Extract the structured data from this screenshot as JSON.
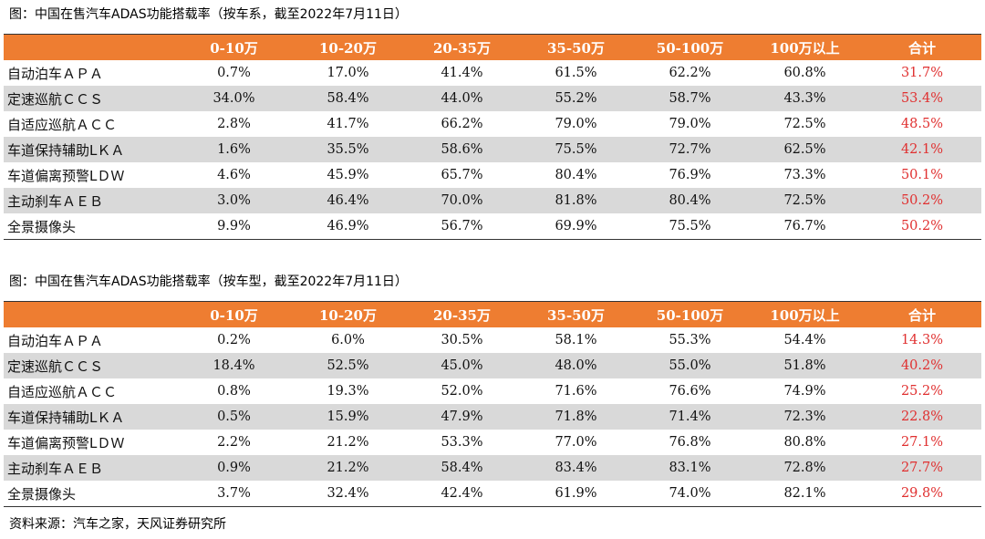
{
  "table1": {
    "caption": "图：中国在售汽车ADAS功能搭载率（按车系，截至2022年7月11日）",
    "headers": [
      "",
      "0-10万",
      "10-20万",
      "20-35万",
      "35-50万",
      "50-100万",
      "100万以上",
      "合计"
    ],
    "rows": [
      [
        "自动泊车ＡＰＡ",
        "0.7%",
        "17.0%",
        "41.4%",
        "61.5%",
        "62.2%",
        "60.8%",
        "31.7%"
      ],
      [
        "定速巡航ＣＣＳ",
        "34.0%",
        "58.4%",
        "44.0%",
        "55.2%",
        "58.7%",
        "43.3%",
        "53.4%"
      ],
      [
        "自适应巡航ＡＣＣ",
        "2.8%",
        "41.7%",
        "66.2%",
        "79.0%",
        "79.0%",
        "72.5%",
        "48.5%"
      ],
      [
        "车道保持辅助LＫＡ",
        "1.6%",
        "35.5%",
        "58.6%",
        "75.5%",
        "72.7%",
        "62.5%",
        "42.1%"
      ],
      [
        "车道偏离预警LＤＷ",
        "4.6%",
        "45.9%",
        "65.7%",
        "80.4%",
        "76.9%",
        "73.3%",
        "50.1%"
      ],
      [
        "主动刹车ＡＥＢ",
        "3.0%",
        "46.4%",
        "70.0%",
        "81.8%",
        "80.4%",
        "72.5%",
        "50.2%"
      ],
      [
        "全景摄像头",
        "9.9%",
        "46.9%",
        "56.7%",
        "69.9%",
        "75.5%",
        "76.7%",
        "50.2%"
      ]
    ]
  },
  "table2": {
    "caption": "图：中国在售汽车ADAS功能搭载率（按车型，截至2022年7月11日）",
    "headers": [
      "",
      "0-10万",
      "10-20万",
      "20-35万",
      "35-50万",
      "50-100万",
      "100万以上",
      "合计"
    ],
    "rows": [
      [
        "自动泊车ＡＰＡ",
        "0.2%",
        "6.0%",
        "30.5%",
        "58.1%",
        "55.3%",
        "54.4%",
        "14.3%"
      ],
      [
        "定速巡航ＣＣＳ",
        "18.4%",
        "52.5%",
        "45.0%",
        "48.0%",
        "55.0%",
        "51.8%",
        "40.2%"
      ],
      [
        "自适应巡航ＡＣＣ",
        "0.8%",
        "19.3%",
        "52.0%",
        "71.6%",
        "76.6%",
        "74.9%",
        "25.2%"
      ],
      [
        "车道保持辅助LＫＡ",
        "0.5%",
        "15.9%",
        "47.9%",
        "71.8%",
        "71.4%",
        "72.3%",
        "22.8%"
      ],
      [
        "车道偏离预警LＤＷ",
        "2.2%",
        "21.2%",
        "53.3%",
        "77.0%",
        "76.8%",
        "80.8%",
        "27.1%"
      ],
      [
        "主动刹车ＡＥＢ",
        "0.9%",
        "21.2%",
        "58.4%",
        "83.4%",
        "83.1%",
        "72.8%",
        "27.7%"
      ],
      [
        "全景摄像头",
        "3.7%",
        "32.4%",
        "42.4%",
        "61.9%",
        "74.0%",
        "82.1%",
        "29.8%"
      ]
    ]
  },
  "source": "资料来源：汽车之家，天风证券研究所",
  "colors": {
    "header_bg": "#ee7d31",
    "header_text": "#ffffff",
    "alt_row_bg": "#d9d9d9",
    "total_text": "#e03030"
  }
}
